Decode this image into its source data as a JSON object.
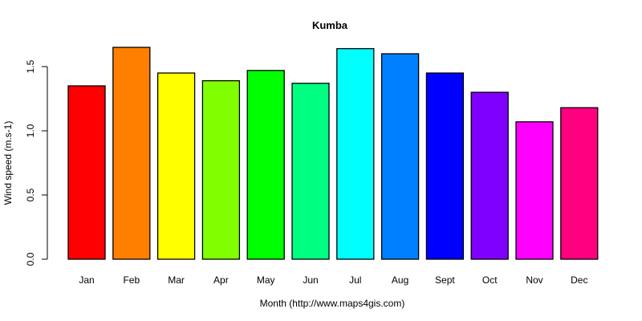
{
  "chart_data": {
    "type": "bar",
    "title": "Kumba",
    "xlabel": "Month (http://www.maps4gis.com)",
    "ylabel": "Wind speed (m.s-1)",
    "categories": [
      "Jan",
      "Feb",
      "Mar",
      "Apr",
      "May",
      "Jun",
      "Jul",
      "Aug",
      "Sept",
      "Oct",
      "Nov",
      "Dec"
    ],
    "values": [
      1.35,
      1.65,
      1.45,
      1.39,
      1.47,
      1.37,
      1.64,
      1.6,
      1.45,
      1.3,
      1.07,
      1.18
    ],
    "colors": [
      "#ff0000",
      "#ff8000",
      "#ffff00",
      "#80ff00",
      "#00ff00",
      "#00ff80",
      "#00ffff",
      "#0080ff",
      "#0000ff",
      "#8000ff",
      "#ff00ff",
      "#ff0080"
    ],
    "yticks": [
      0.0,
      0.5,
      1.0,
      1.5
    ],
    "ytick_labels": [
      "0.0",
      "0.5",
      "1.0",
      "1.5"
    ],
    "ylim": [
      0,
      1.65
    ],
    "grid": false,
    "legend": null
  }
}
